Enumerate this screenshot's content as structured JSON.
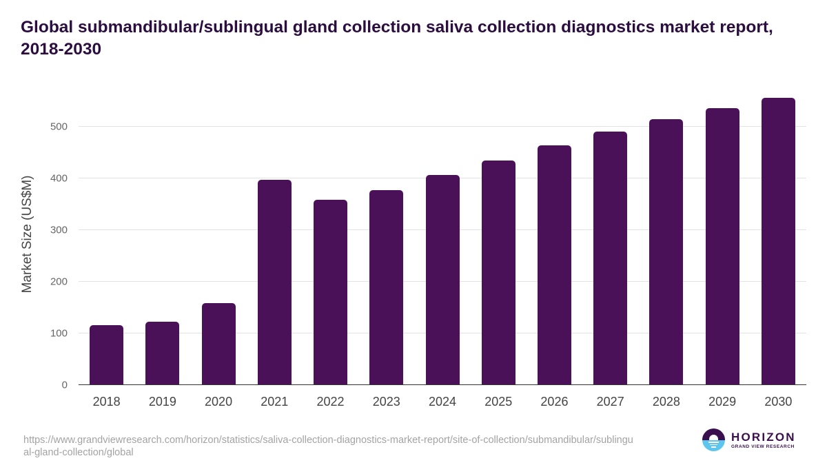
{
  "title": "Global submandibular/sublingual gland collection saliva collection diagnostics market report, 2018-2030",
  "source_url": "https://www.grandviewresearch.com/horizon/statistics/saliva-collection-diagnostics-market-report/site-of-collection/submandibular/sublingual-gland-collection/global",
  "logo": {
    "word": "HORIZON",
    "subtitle": "GRAND VIEW RESEARCH",
    "icon": "horizon-sun-logo-icon"
  },
  "colors": {
    "bar": "#4a1058",
    "title": "#2b0e3f",
    "grid": "#e2e2e2",
    "axis": "#333333"
  },
  "chart_data": {
    "type": "bar",
    "title": "Global submandibular/sublingual gland collection saliva collection diagnostics market report, 2018-2030",
    "xlabel": "",
    "ylabel": "Market Size (US$M)",
    "categories": [
      "2018",
      "2019",
      "2020",
      "2021",
      "2022",
      "2023",
      "2024",
      "2025",
      "2026",
      "2027",
      "2028",
      "2029",
      "2030"
    ],
    "series": [
      {
        "name": "Market Size (US$M)",
        "values": [
          115,
          121,
          157,
          396,
          357,
          376,
          405,
          434,
          463,
          489,
          514,
          535,
          555
        ]
      }
    ],
    "yticks": [
      0,
      100,
      200,
      300,
      400,
      500
    ],
    "ylim": [
      0,
      555
    ],
    "grid": true,
    "legend": "none"
  }
}
